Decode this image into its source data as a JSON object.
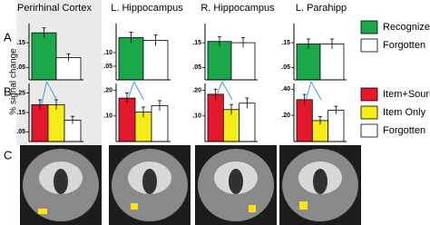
{
  "panel_labels": [
    "A",
    "B",
    "C"
  ],
  "y_axis_label": "% signal change",
  "chart_data": [
    {
      "type": "bar",
      "title": "Perirhinal Cortex",
      "ylim": [
        0,
        0.22
      ],
      "yticks": [
        {
          "value": 0.05,
          "label": ".05"
        },
        {
          "value": 0.15,
          "label": ".15"
        }
      ],
      "series": [
        {
          "name": "Recognized",
          "color": "#1aa84a",
          "values": [
            0.19
          ],
          "errors": [
            0.02
          ]
        },
        {
          "name": "Forgotten",
          "color": "#ffffff",
          "values": [
            0.09
          ],
          "errors": [
            0.015
          ]
        }
      ]
    },
    {
      "type": "bar",
      "title": "L. Hippocampus",
      "ylim": [
        0,
        0.2
      ],
      "yticks": [
        {
          "value": 0.05,
          "label": ".05"
        },
        {
          "value": 0.1,
          "label": ".10"
        }
      ],
      "series": [
        {
          "name": "Recognized",
          "color": "#1aa84a",
          "values": [
            0.155
          ],
          "errors": [
            0.02
          ]
        },
        {
          "name": "Forgotten",
          "color": "#ffffff",
          "values": [
            0.145
          ],
          "errors": [
            0.02
          ]
        }
      ]
    },
    {
      "type": "bar",
      "title": "R. Hippocampus",
      "ylim": [
        0,
        0.22
      ],
      "yticks": [
        {
          "value": 0.05,
          "label": ".05"
        },
        {
          "value": 0.15,
          "label": ".15"
        }
      ],
      "series": [
        {
          "name": "Recognized",
          "color": "#1aa84a",
          "values": [
            0.155
          ],
          "errors": [
            0.02
          ]
        },
        {
          "name": "Forgotten",
          "color": "#ffffff",
          "values": [
            0.15
          ],
          "errors": [
            0.02
          ]
        }
      ]
    },
    {
      "type": "bar",
      "title": "L. Parahipp",
      "ylim": [
        0,
        0.22
      ],
      "yticks": [
        {
          "value": 0.05,
          "label": ".05"
        },
        {
          "value": 0.15,
          "label": ".15"
        }
      ],
      "series": [
        {
          "name": "Recognized",
          "color": "#1aa84a",
          "values": [
            0.145
          ],
          "errors": [
            0.02
          ]
        },
        {
          "name": "Forgotten",
          "color": "#ffffff",
          "values": [
            0.145
          ],
          "errors": [
            0.02
          ]
        }
      ]
    },
    {
      "type": "bar",
      "ylim": [
        0,
        0.29
      ],
      "yticks": [
        {
          "value": 0.05,
          "label": ".05"
        },
        {
          "value": 0.15,
          "label": ".15"
        },
        {
          "value": 0.25,
          "label": ".25"
        }
      ],
      "series": [
        {
          "name": "Item+Source",
          "color": "#e4182c",
          "values": [
            0.19
          ],
          "errors": [
            0.025
          ]
        },
        {
          "name": "Item Only",
          "color": "#f5ec1a",
          "values": [
            0.19
          ],
          "errors": [
            0.025
          ]
        },
        {
          "name": "Forgotten",
          "color": "#ffffff",
          "values": [
            0.11
          ],
          "errors": [
            0.02
          ]
        }
      ]
    },
    {
      "type": "bar",
      "ylim": [
        0,
        0.22
      ],
      "yticks": [
        {
          "value": 0.1,
          "label": ".10"
        },
        {
          "value": 0.2,
          "label": ".20"
        }
      ],
      "series": [
        {
          "name": "Item+Source",
          "color": "#e4182c",
          "values": [
            0.17
          ],
          "errors": [
            0.02
          ]
        },
        {
          "name": "Item Only",
          "color": "#f5ec1a",
          "values": [
            0.115
          ],
          "errors": [
            0.02
          ]
        },
        {
          "name": "Forgotten",
          "color": "#ffffff",
          "values": [
            0.14
          ],
          "errors": [
            0.02
          ]
        }
      ]
    },
    {
      "type": "bar",
      "ylim": [
        0,
        0.22
      ],
      "yticks": [
        {
          "value": 0.1,
          "label": ".10"
        },
        {
          "value": 0.2,
          "label": ".20"
        }
      ],
      "series": [
        {
          "name": "Item+Source",
          "color": "#e4182c",
          "values": [
            0.185
          ],
          "errors": [
            0.02
          ]
        },
        {
          "name": "Item Only",
          "color": "#f5ec1a",
          "values": [
            0.125
          ],
          "errors": [
            0.02
          ]
        },
        {
          "name": "Forgotten",
          "color": "#ffffff",
          "values": [
            0.15
          ],
          "errors": [
            0.02
          ]
        }
      ]
    },
    {
      "type": "bar",
      "ylim": [
        0,
        0.43
      ],
      "yticks": [
        {
          "value": 0.2,
          "label": ".20"
        },
        {
          "value": 0.4,
          "label": ".40"
        }
      ],
      "series": [
        {
          "name": "Item+Source",
          "color": "#e4182c",
          "values": [
            0.32
          ],
          "errors": [
            0.04
          ]
        },
        {
          "name": "Item Only",
          "color": "#f5ec1a",
          "values": [
            0.16
          ],
          "errors": [
            0.03
          ]
        },
        {
          "name": "Forgotten",
          "color": "#ffffff",
          "values": [
            0.24
          ],
          "errors": [
            0.03
          ]
        }
      ]
    }
  ]
}
